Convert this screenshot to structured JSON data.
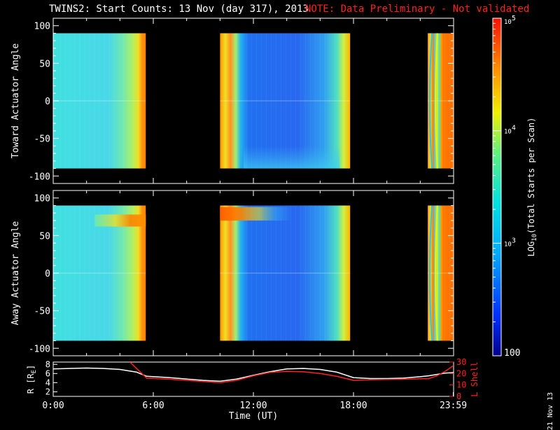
{
  "header": {
    "title": "TWINS2: Start Counts: 13 Nov (day 317), 2013",
    "note": "NOTE: Data Preliminary - Not validated"
  },
  "datestamp": "21 Nov 13",
  "colors": {
    "background": "#000000",
    "note": "#ff2020",
    "r_line": "#ffffff",
    "lshell_line": "#ff2020"
  },
  "chart_data": [
    {
      "type": "heatmap",
      "ylabel": "Toward Actuator Angle",
      "ylim": [
        -110,
        110
      ],
      "yticks": [
        "100",
        "50",
        "0",
        "-50",
        "-100"
      ],
      "ytick_values": [
        100,
        50,
        0,
        -50,
        -100
      ],
      "xlim": [
        0,
        24
      ],
      "data_angle_range": [
        -90,
        90
      ],
      "segments": [
        {
          "start": 0.0,
          "end": 5.55,
          "level": "low (~10^3)"
        },
        {
          "start": 10.0,
          "end": 17.8,
          "level": "lowest (~10^2.5)"
        },
        {
          "start": 22.45,
          "end": 24.0,
          "level": "high (~10^4.5)"
        }
      ]
    },
    {
      "type": "heatmap",
      "ylabel": "Away Actuator Angle",
      "ylim": [
        -110,
        110
      ],
      "yticks": [
        "100",
        "50",
        "0",
        "-50",
        "-100"
      ],
      "ytick_values": [
        100,
        50,
        0,
        -50,
        -100
      ],
      "xlim": [
        0,
        24
      ],
      "data_angle_range": [
        -90,
        90
      ],
      "segments": [
        {
          "start": 0.0,
          "end": 5.55,
          "level": "low (~10^3), band near 70 deg elevated"
        },
        {
          "start": 10.0,
          "end": 17.8,
          "level": "lowest (~10^2.5), band near 80 deg elevated"
        },
        {
          "start": 22.45,
          "end": 24.0,
          "level": "high (~10^4.5)"
        }
      ]
    },
    {
      "type": "line",
      "xlabel": "Time (UT)",
      "xticks": [
        "0:00",
        "6:00",
        "12:00",
        "18:00",
        "23:59"
      ],
      "xtick_values": [
        0,
        6,
        12,
        18,
        23.98
      ],
      "ylabel": "R [R",
      "ylabel_sub": "E",
      "ylabel_close": "]",
      "ylim": [
        1,
        8.5
      ],
      "yticks": [
        "8",
        "6",
        "4",
        "2"
      ],
      "ytick_values": [
        8,
        6,
        4,
        2
      ],
      "y2label": "L Shell",
      "y2lim": [
        0,
        30
      ],
      "y2ticks": [
        "30",
        "20",
        "10",
        "0"
      ],
      "y2tick_values": [
        30,
        20,
        10,
        0
      ],
      "series": [
        {
          "axis": "left",
          "x": [
            0,
            1,
            2,
            3,
            4,
            5,
            5.6,
            7,
            8,
            9,
            10,
            11,
            12,
            13,
            14,
            15,
            16,
            17,
            18,
            19,
            20,
            21,
            22,
            22.5,
            23,
            23.5,
            24
          ],
          "values": [
            7.0,
            7.1,
            7.2,
            7.1,
            6.9,
            6.3,
            5.4,
            5.1,
            4.8,
            4.5,
            4.3,
            4.8,
            5.6,
            6.4,
            7.0,
            7.1,
            6.9,
            6.3,
            5.1,
            4.9,
            4.9,
            5.0,
            5.3,
            5.5,
            5.8,
            6.1,
            6.2
          ]
        },
        {
          "axis": "right",
          "x": [
            4.6,
            5.6,
            7,
            8,
            9,
            10,
            11,
            12,
            13,
            14,
            15,
            16,
            17,
            18,
            19,
            20,
            21,
            22,
            22.5,
            23,
            23.5,
            24
          ],
          "values": [
            30,
            16,
            15,
            14,
            13,
            12,
            14,
            18,
            21,
            22,
            21.5,
            20,
            17.5,
            14,
            14.5,
            14.8,
            15,
            15.5,
            15.5,
            18,
            22,
            27
          ]
        }
      ]
    },
    {
      "type": "colorbar",
      "label": "LOG",
      "label_sub": "10",
      "label_rest": "(Total Starts per Scan)",
      "range": [
        100,
        100000
      ],
      "scale": "log",
      "ticks": [
        {
          "value": 100000,
          "base": "10",
          "exp": "5"
        },
        {
          "value": 10000,
          "base": "10",
          "exp": "4"
        },
        {
          "value": 1000,
          "base": "10",
          "exp": "3"
        },
        {
          "value": 100,
          "base": "100",
          "exp": ""
        }
      ]
    }
  ]
}
